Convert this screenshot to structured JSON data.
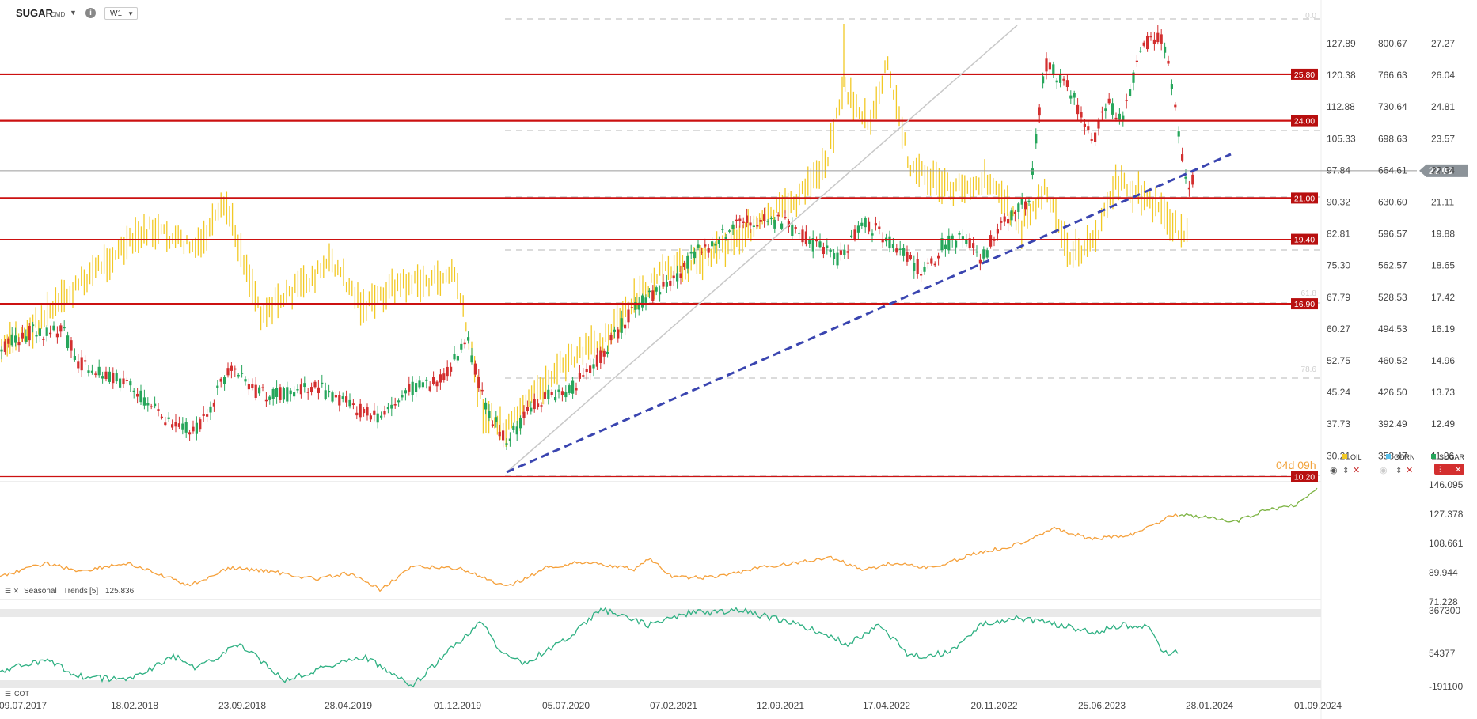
{
  "toolbar": {
    "symbol": "SUGAR",
    "symbol_suffix": "CMD",
    "timeframe": "W1",
    "info_glyph": "i"
  },
  "chart_data": [
    {
      "type": "candlestick",
      "title": "",
      "series": [
        {
          "name": "SUGAR",
          "color": "#26a65b",
          "down_color": "#d32f2f"
        },
        {
          "name": "OIL",
          "color": "#f2c925"
        },
        {
          "name": "CORN",
          "color": "#5bc0eb"
        }
      ],
      "x_ticks": [
        "09.07.2017",
        "18.02.2018",
        "23.09.2018",
        "28.04.2019",
        "01.12.2019",
        "05.07.2020",
        "07.02.2021",
        "12.09.2021",
        "17.04.2022",
        "20.11.2022",
        "25.06.2023",
        "28.01.2024",
        "01.09.2024"
      ],
      "axis_left_oil": [
        "127.89",
        "120.38",
        "112.88",
        "105.33",
        "97.84",
        "90.32",
        "82.81",
        "75.30",
        "67.79",
        "60.27",
        "52.75",
        "45.24",
        "37.73",
        "30.21"
      ],
      "axis_mid": [
        "800.67",
        "766.63",
        "730.64",
        "698.63",
        "664.61",
        "630.60",
        "596.57",
        "562.57",
        "528.53",
        "494.53",
        "460.52",
        "426.50",
        "392.49",
        "358.47"
      ],
      "axis_sugar": [
        "27.27",
        "26.04",
        "24.81",
        "23.57",
        "22.34",
        "21.11",
        "19.88",
        "18.65",
        "17.42",
        "16.19",
        "14.96",
        "13.73",
        "12.49",
        "11.26"
      ],
      "horizontal_levels": [
        "25.80",
        "24.00",
        "21.00",
        "19.40",
        "16.90",
        "10.20"
      ],
      "current_price": "22.03",
      "fib_levels": [
        "0.0",
        "50.0",
        "61.8",
        "78.6"
      ],
      "countdown": "04d 09h",
      "legend": [
        "OIL",
        "CORN",
        "SUGAR"
      ],
      "legend_colors": {
        "OIL": "#f2c925",
        "CORN": "#5bc0eb",
        "SUGAR": "#26a65b"
      },
      "level_color": "#cc1111",
      "trend_color": "#3a45b0"
    },
    {
      "type": "line",
      "title": "Seasonal Trends [5] 125.836",
      "indicator_label": "Seasonal",
      "indicator_name": "Trends",
      "indicator_params": "[5]",
      "indicator_value": "125.836",
      "y_ticks": [
        "146.095",
        "127.378",
        "108.661",
        "89.944",
        "71.228"
      ],
      "colors": {
        "past": "#f5a13c",
        "future": "#7cb342"
      }
    },
    {
      "type": "line",
      "title": "COT",
      "y_ticks": [
        "367300",
        "54377",
        "-191100"
      ],
      "color": "#2eb082"
    }
  ]
}
